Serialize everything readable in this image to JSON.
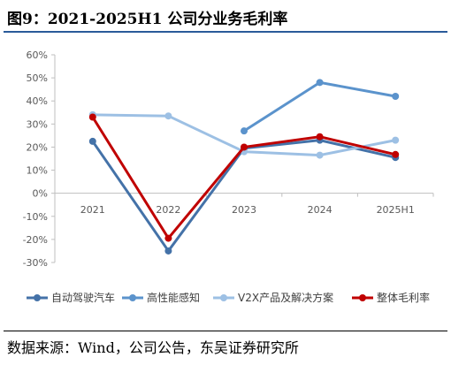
{
  "figure": {
    "title": "图9：2021-2025H1 公司分业务毛利率",
    "source": "数据来源：Wind，公司公告，东吴证券研究所"
  },
  "chart_data": {
    "type": "line",
    "x": [
      "2021",
      "2022",
      "2023",
      "2024",
      "2025H1"
    ],
    "ylim": [
      -0.3,
      0.6
    ],
    "yticks": [
      "60%",
      "50%",
      "40%",
      "30%",
      "20%",
      "10%",
      "0%",
      "-10%",
      "-20%",
      "-30%"
    ],
    "grid": false,
    "legend_position": "bottom",
    "series": [
      {
        "name": "自动驾驶汽车",
        "color": "#4472a8",
        "values": [
          0.225,
          -0.25,
          0.195,
          0.23,
          0.155
        ]
      },
      {
        "name": "高性能感知",
        "color": "#5b93cc",
        "values": [
          null,
          null,
          0.27,
          0.48,
          0.42
        ]
      },
      {
        "name": "V2X产品及解决方案",
        "color": "#9dc0e4",
        "values": [
          0.34,
          0.335,
          0.18,
          0.165,
          0.23
        ]
      },
      {
        "name": "整体毛利率",
        "color": "#c00000",
        "values": [
          0.33,
          -0.195,
          0.2,
          0.245,
          0.168
        ]
      }
    ]
  }
}
